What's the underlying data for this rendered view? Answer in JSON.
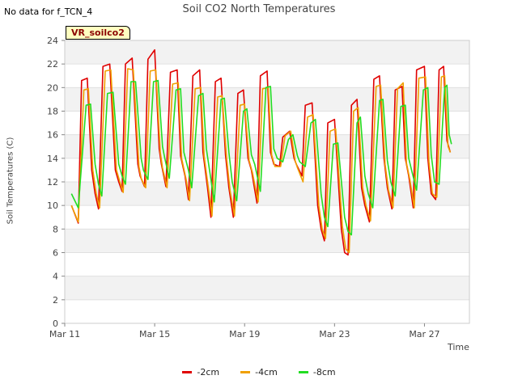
{
  "status_text": "No data for f_TCN_4",
  "site_badge": "VR_soilco2",
  "chart_data": {
    "type": "line",
    "title": "Soil CO2 North Temperatures",
    "xlabel": "Time",
    "ylabel": "Soil Temperatures (C)",
    "xlim": [
      0,
      18
    ],
    "ylim": [
      0,
      24
    ],
    "y_ticks": [
      0,
      2,
      4,
      6,
      8,
      10,
      12,
      14,
      16,
      18,
      20,
      22,
      24
    ],
    "x_ticks": [
      {
        "value": 0,
        "label": "Mar 11"
      },
      {
        "value": 4,
        "label": "Mar 15"
      },
      {
        "value": 8,
        "label": "Mar 19"
      },
      {
        "value": 12,
        "label": "Mar 23"
      },
      {
        "value": 16,
        "label": "Mar 27"
      }
    ],
    "x_unit": "days after Mar 11",
    "grid": true,
    "legend_position": "bottom",
    "series": [
      {
        "name": "-2cm",
        "color": "#e00000",
        "x": [
          0.3,
          0.6,
          0.75,
          1.0,
          1.2,
          1.35,
          1.5,
          1.7,
          2.0,
          2.25,
          2.4,
          2.55,
          2.7,
          3.0,
          3.25,
          3.35,
          3.55,
          3.7,
          4.0,
          4.2,
          4.3,
          4.5,
          4.7,
          5.0,
          5.15,
          5.35,
          5.5,
          5.7,
          6.0,
          6.15,
          6.35,
          6.5,
          6.7,
          6.95,
          7.15,
          7.3,
          7.5,
          7.7,
          7.95,
          8.15,
          8.3,
          8.55,
          8.7,
          9.0,
          9.15,
          9.3,
          9.55,
          9.7,
          10.0,
          10.2,
          10.3,
          10.55,
          10.7,
          11.0,
          11.25,
          11.4,
          11.55,
          11.7,
          12.0,
          12.3,
          12.45,
          12.6,
          12.75,
          13.0,
          13.2,
          13.35,
          13.55,
          13.75,
          14.0,
          14.2,
          14.35,
          14.55,
          14.7,
          15.0,
          15.15,
          15.3,
          15.5,
          15.65,
          16.0,
          16.15,
          16.3,
          16.5,
          16.65,
          16.85,
          17.0,
          17.15
        ],
        "values": [
          10.0,
          8.5,
          20.6,
          20.8,
          13.0,
          11.0,
          9.7,
          21.8,
          22.0,
          13.0,
          12.0,
          11.2,
          22.0,
          22.5,
          13.5,
          12.5,
          11.6,
          22.4,
          23.2,
          14.8,
          13.5,
          11.6,
          21.3,
          21.5,
          14.2,
          12.5,
          10.5,
          21.0,
          21.5,
          14.5,
          11.5,
          9.0,
          20.5,
          20.8,
          14.3,
          11.5,
          9.0,
          19.5,
          19.8,
          14.0,
          13.0,
          10.2,
          21.0,
          21.4,
          14.5,
          13.5,
          13.3,
          15.8,
          16.3,
          14.0,
          13.5,
          12.5,
          18.5,
          18.7,
          10.0,
          8.0,
          7.0,
          17.0,
          17.3,
          8.0,
          6.0,
          5.8,
          18.5,
          19.0,
          11.5,
          10.0,
          8.6,
          20.7,
          21.0,
          14.0,
          11.5,
          9.7,
          19.8,
          20.1,
          14.0,
          12.5,
          9.8,
          21.5,
          21.8,
          14.0,
          11.0,
          10.5,
          21.5,
          21.8,
          15.5,
          14.5
        ]
      },
      {
        "name": "-4cm",
        "color": "#f0a000",
        "x": [
          0.3,
          0.6,
          0.85,
          1.05,
          1.25,
          1.4,
          1.55,
          1.8,
          2.05,
          2.3,
          2.45,
          2.6,
          2.8,
          3.05,
          3.3,
          3.4,
          3.6,
          3.8,
          4.05,
          4.25,
          4.35,
          4.55,
          4.8,
          5.05,
          5.2,
          5.4,
          5.55,
          5.8,
          6.05,
          6.2,
          6.4,
          6.55,
          6.8,
          7.0,
          7.2,
          7.35,
          7.55,
          7.8,
          8.0,
          8.2,
          8.35,
          8.6,
          8.8,
          9.05,
          9.2,
          9.35,
          9.6,
          9.8,
          10.05,
          10.25,
          10.35,
          10.6,
          10.8,
          11.05,
          11.3,
          11.45,
          11.6,
          11.8,
          12.05,
          12.35,
          12.5,
          12.65,
          12.85,
          13.05,
          13.25,
          13.4,
          13.6,
          13.85,
          14.05,
          14.25,
          14.4,
          14.6,
          14.8,
          15.05,
          15.2,
          15.35,
          15.55,
          15.75,
          16.05,
          16.2,
          16.35,
          16.55,
          16.75,
          16.9,
          17.05,
          17.15
        ],
        "values": [
          10.0,
          8.6,
          19.8,
          19.9,
          13.0,
          11.0,
          9.8,
          21.4,
          21.5,
          13.0,
          12.0,
          11.1,
          21.6,
          21.5,
          13.3,
          12.3,
          11.5,
          21.4,
          21.5,
          14.5,
          13.2,
          11.5,
          20.3,
          20.4,
          14.0,
          12.2,
          10.4,
          19.9,
          20.0,
          14.2,
          11.3,
          9.1,
          19.2,
          19.3,
          14.0,
          11.3,
          9.1,
          18.5,
          18.6,
          13.8,
          12.8,
          10.3,
          19.9,
          20.0,
          14.3,
          13.3,
          13.3,
          15.9,
          16.3,
          13.8,
          13.2,
          12.0,
          17.5,
          17.7,
          10.0,
          8.0,
          7.2,
          16.3,
          16.5,
          8.2,
          6.3,
          6.0,
          18.0,
          18.3,
          11.5,
          10.0,
          8.7,
          20.1,
          20.2,
          13.5,
          11.3,
          9.8,
          19.9,
          20.4,
          13.6,
          12.2,
          9.8,
          20.8,
          20.9,
          13.7,
          11.0,
          10.7,
          20.9,
          21.0,
          15.0,
          14.5
        ]
      },
      {
        "name": "-8cm",
        "color": "#22dd22",
        "x": [
          0.3,
          0.6,
          0.95,
          1.15,
          1.35,
          1.5,
          1.65,
          1.9,
          2.15,
          2.4,
          2.55,
          2.7,
          2.95,
          3.15,
          3.4,
          3.5,
          3.7,
          3.95,
          4.15,
          4.35,
          4.45,
          4.65,
          4.95,
          5.15,
          5.3,
          5.5,
          5.65,
          5.95,
          6.15,
          6.3,
          6.5,
          6.65,
          6.95,
          7.1,
          7.3,
          7.45,
          7.65,
          7.95,
          8.1,
          8.3,
          8.45,
          8.7,
          8.95,
          9.15,
          9.3,
          9.45,
          9.7,
          9.95,
          10.15,
          10.35,
          10.45,
          10.7,
          10.95,
          11.15,
          11.4,
          11.55,
          11.7,
          11.95,
          12.15,
          12.45,
          12.6,
          12.75,
          13.0,
          13.15,
          13.35,
          13.5,
          13.7,
          14.0,
          14.15,
          14.35,
          14.5,
          14.7,
          14.95,
          15.15,
          15.3,
          15.45,
          15.65,
          15.95,
          16.15,
          16.3,
          16.45,
          16.65,
          16.9,
          17.0,
          17.1,
          17.2
        ],
        "values": [
          11.0,
          9.8,
          18.5,
          18.6,
          13.5,
          11.8,
          10.8,
          19.5,
          19.6,
          13.5,
          12.5,
          11.8,
          20.5,
          20.5,
          14.0,
          13.0,
          12.2,
          20.5,
          20.6,
          15.0,
          14.0,
          12.3,
          19.8,
          19.9,
          14.5,
          13.0,
          11.5,
          19.3,
          19.5,
          14.8,
          12.2,
          10.3,
          19.0,
          19.1,
          14.5,
          12.0,
          10.4,
          18.0,
          18.2,
          14.3,
          13.5,
          11.2,
          20.0,
          20.1,
          14.8,
          14.0,
          13.7,
          15.6,
          16.0,
          14.2,
          13.7,
          13.3,
          17.0,
          17.3,
          11.0,
          9.0,
          8.2,
          15.2,
          15.3,
          9.0,
          7.8,
          7.5,
          17.0,
          17.5,
          12.5,
          11.0,
          9.8,
          18.9,
          19.0,
          13.8,
          12.0,
          10.8,
          18.4,
          18.5,
          14.0,
          12.8,
          11.3,
          19.8,
          20.0,
          14.3,
          12.0,
          11.8,
          20.0,
          20.2,
          16.0,
          15.2
        ]
      }
    ]
  }
}
